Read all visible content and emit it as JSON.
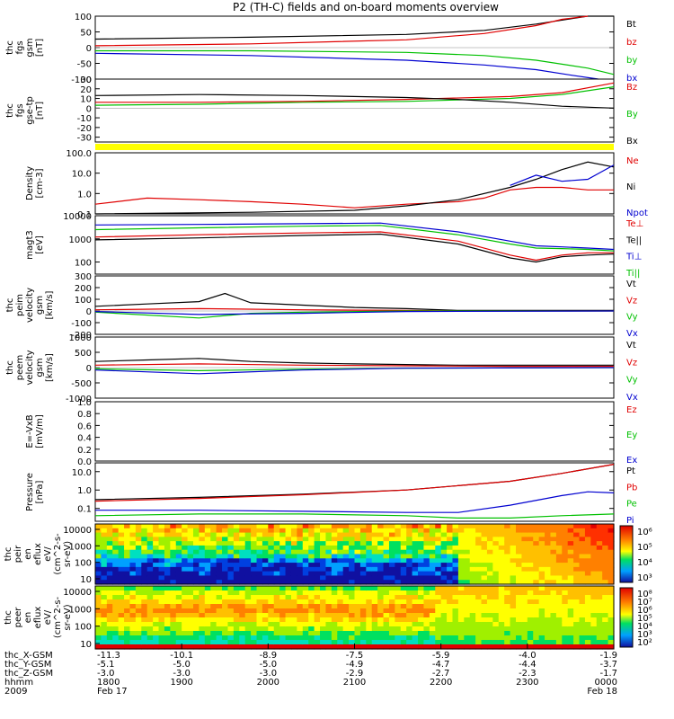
{
  "chart_data": {
    "type": "line",
    "title": "P2 (TH-C) fields and on-board moments overview",
    "panels": [
      {
        "id": "fgs_gsm",
        "ylabel": [
          "thc",
          "fgs",
          "gsm",
          "[nT]"
        ],
        "yticks": [
          "100",
          "50",
          "0",
          "-50",
          "-100"
        ],
        "ylim": [
          -100,
          100
        ],
        "ylog": false,
        "legend": [
          {
            "label": "Bt",
            "color": "#000000"
          },
          {
            "label": "bz",
            "color": "#e00000"
          },
          {
            "label": "by",
            "color": "#00c000"
          },
          {
            "label": "bx",
            "color": "#0000d0"
          }
        ],
        "series": [
          {
            "color": "#000000",
            "x": [
              0,
              0.3,
              0.6,
              0.75,
              0.85,
              0.95,
              1.0
            ],
            "y": [
              27,
              33,
              42,
              55,
              75,
              102,
              102
            ]
          },
          {
            "color": "#e00000",
            "x": [
              0,
              0.3,
              0.6,
              0.75,
              0.85,
              0.9,
              0.95
            ],
            "y": [
              6,
              12,
              25,
              45,
              70,
              90,
              100
            ]
          },
          {
            "color": "#00c000",
            "x": [
              0,
              0.3,
              0.6,
              0.75,
              0.85,
              0.95,
              1.0
            ],
            "y": [
              -10,
              -10,
              -15,
              -25,
              -40,
              -65,
              -85
            ]
          },
          {
            "color": "#0000d0",
            "x": [
              0,
              0.3,
              0.6,
              0.75,
              0.85,
              0.92,
              0.97
            ],
            "y": [
              -18,
              -25,
              -40,
              -55,
              -70,
              -88,
              -100
            ]
          }
        ]
      },
      {
        "id": "fgs_gse",
        "ylabel": [
          "thc",
          "fgs",
          "gse-tp",
          "[nT]"
        ],
        "yticks": [
          "30",
          "20",
          "10",
          "0",
          "-10",
          "-20",
          "-30"
        ],
        "ylim": [
          -35,
          30
        ],
        "ylog": false,
        "legend": [
          {
            "label": "Bz",
            "color": "#e00000"
          },
          {
            "label": "By",
            "color": "#00c000"
          },
          {
            "label": "Bx",
            "color": "#000000"
          }
        ],
        "series": [
          {
            "color": "#00c000",
            "x": [
              0,
              0.2,
              0.4,
              0.6,
              0.8,
              0.9,
              1.0
            ],
            "y": [
              3,
              4,
              6,
              7,
              10,
              14,
              22
            ]
          },
          {
            "color": "#e00000",
            "x": [
              0,
              0.2,
              0.4,
              0.6,
              0.8,
              0.9,
              1.0
            ],
            "y": [
              6,
              6,
              7,
              9,
              12,
              16,
              26
            ]
          },
          {
            "color": "#000000",
            "x": [
              0,
              0.2,
              0.4,
              0.6,
              0.7,
              0.8,
              0.9,
              1.0
            ],
            "y": [
              13,
              14,
              13,
              11,
              9,
              6,
              2,
              0
            ]
          }
        ]
      },
      {
        "id": "quality_bar",
        "bar_color": "#ffff00"
      },
      {
        "id": "density",
        "ylabel": [
          "Density",
          "[cm-3]"
        ],
        "yticks": [
          "100.0",
          "10.0",
          "1.0",
          "0.1"
        ],
        "ylim": [
          0.1,
          100
        ],
        "ylog": true,
        "legend": [
          {
            "label": "Ne",
            "color": "#e00000"
          },
          {
            "label": "Ni",
            "color": "#000000"
          },
          {
            "label": "Npot",
            "color": "#0000d0"
          }
        ],
        "series": [
          {
            "color": "#e00000",
            "x": [
              0,
              0.1,
              0.2,
              0.3,
              0.4,
              0.5,
              0.6,
              0.7,
              0.75,
              0.8,
              0.85,
              0.9,
              0.95,
              1.0
            ],
            "y": [
              0.3,
              0.6,
              0.5,
              0.4,
              0.3,
              0.2,
              0.3,
              0.4,
              0.6,
              1.5,
              2.0,
              2.0,
              1.5,
              1.5
            ]
          },
          {
            "color": "#000000",
            "x": [
              0,
              0.3,
              0.5,
              0.6,
              0.7,
              0.8,
              0.85,
              0.9,
              0.95,
              1.0
            ],
            "y": [
              0.1,
              0.12,
              0.15,
              0.25,
              0.5,
              2.0,
              5.0,
              15,
              35,
              20
            ]
          },
          {
            "color": "#0000d0",
            "x": [
              0.8,
              0.85,
              0.9,
              0.95,
              1.0
            ],
            "y": [
              2.5,
              8.0,
              4.0,
              5.0,
              25
            ]
          }
        ]
      },
      {
        "id": "temperature",
        "ylabel": [
          "magt3",
          "[eV]"
        ],
        "yticks": [
          "10000",
          "1000",
          "100"
        ],
        "ylim": [
          30,
          10000
        ],
        "ylog": true,
        "legend": [
          {
            "label": "Te⊥",
            "color": "#e00000"
          },
          {
            "label": "Te||",
            "color": "#000000"
          },
          {
            "label": "Ti⊥",
            "color": "#0000d0"
          },
          {
            "label": "Ti||",
            "color": "#00c000"
          }
        ],
        "series": [
          {
            "color": "#0000d0",
            "x": [
              0,
              0.2,
              0.4,
              0.55,
              0.7,
              0.8,
              0.85,
              0.9,
              0.95,
              1.0
            ],
            "y": [
              4000,
              4200,
              4500,
              4800,
              2000,
              800,
              500,
              450,
              400,
              350
            ]
          },
          {
            "color": "#00c000",
            "x": [
              0,
              0.2,
              0.4,
              0.55,
              0.7,
              0.8,
              0.85,
              0.9,
              0.95,
              1.0
            ],
            "y": [
              2500,
              3000,
              3500,
              3800,
              1500,
              600,
              400,
              380,
              350,
              300
            ]
          },
          {
            "color": "#e00000",
            "x": [
              0,
              0.2,
              0.4,
              0.55,
              0.7,
              0.8,
              0.85,
              0.9,
              0.95,
              1.0
            ],
            "y": [
              1200,
              1500,
              1800,
              2000,
              800,
              200,
              120,
              200,
              250,
              250
            ]
          },
          {
            "color": "#000000",
            "x": [
              0,
              0.2,
              0.4,
              0.55,
              0.7,
              0.8,
              0.85,
              0.9,
              0.95,
              1.0
            ],
            "y": [
              900,
              1100,
              1400,
              1600,
              600,
              150,
              100,
              170,
              200,
              220
            ]
          }
        ]
      },
      {
        "id": "peim_velocity",
        "ylabel": [
          "thc",
          "peim",
          "velocity",
          "gsm",
          "[km/s]"
        ],
        "yticks": [
          "300",
          "200",
          "100",
          "0",
          "-100",
          "-200"
        ],
        "ylim": [
          -200,
          300
        ],
        "ylog": false,
        "legend": [
          {
            "label": "Vt",
            "color": "#000000"
          },
          {
            "label": "Vz",
            "color": "#e00000"
          },
          {
            "label": "Vy",
            "color": "#00c000"
          },
          {
            "label": "Vx",
            "color": "#0000d0"
          }
        ],
        "series": [
          {
            "color": "#000000",
            "x": [
              0,
              0.1,
              0.2,
              0.25,
              0.3,
              0.4,
              0.5,
              0.6,
              0.7,
              1.0
            ],
            "y": [
              40,
              60,
              80,
              150,
              70,
              50,
              30,
              20,
              5,
              5
            ]
          },
          {
            "color": "#e00000",
            "x": [
              0,
              0.2,
              0.4,
              0.6,
              0.7,
              1.0
            ],
            "y": [
              10,
              20,
              10,
              5,
              0,
              0
            ]
          },
          {
            "color": "#00c000",
            "x": [
              0,
              0.2,
              0.3,
              0.4,
              0.6,
              1.0
            ],
            "y": [
              -10,
              -60,
              -20,
              -10,
              0,
              0
            ]
          },
          {
            "color": "#0000d0",
            "x": [
              0,
              0.2,
              0.4,
              0.6,
              1.0
            ],
            "y": [
              -5,
              -30,
              -20,
              -5,
              0
            ]
          }
        ]
      },
      {
        "id": "peem_velocity",
        "ylabel": [
          "thc",
          "peem",
          "velocity",
          "gsm",
          "[km/s]"
        ],
        "yticks": [
          "1000",
          "500",
          "0",
          "-500",
          "-1000"
        ],
        "ylim": [
          -1000,
          1000
        ],
        "ylog": false,
        "legend": [
          {
            "label": "Vt",
            "color": "#000000"
          },
          {
            "label": "Vz",
            "color": "#e00000"
          },
          {
            "label": "Vy",
            "color": "#00c000"
          },
          {
            "label": "Vx",
            "color": "#0000d0"
          }
        ],
        "series": [
          {
            "color": "#000000",
            "x": [
              0,
              0.1,
              0.2,
              0.3,
              0.4,
              0.5,
              0.6,
              0.7,
              0.8,
              1.0
            ],
            "y": [
              200,
              250,
              300,
              200,
              150,
              120,
              100,
              80,
              80,
              80
            ]
          },
          {
            "color": "#e00000",
            "x": [
              0,
              0.2,
              0.4,
              0.6,
              0.8,
              1.0
            ],
            "y": [
              80,
              120,
              80,
              60,
              40,
              40
            ]
          },
          {
            "color": "#00c000",
            "x": [
              0,
              0.2,
              0.4,
              0.6,
              1.0
            ],
            "y": [
              -40,
              -100,
              -50,
              -20,
              0
            ]
          },
          {
            "color": "#0000d0",
            "x": [
              0,
              0.2,
              0.4,
              0.6,
              1.0
            ],
            "y": [
              -80,
              -200,
              -80,
              -20,
              0
            ]
          }
        ]
      },
      {
        "id": "e_field",
        "ylabel": [
          "E=-VxB",
          "[mV/m]"
        ],
        "yticks": [
          "1.0",
          "0.8",
          "0.6",
          "0.4",
          "0.2",
          "0.0"
        ],
        "ylim": [
          0,
          1
        ],
        "ylog": false,
        "legend": [
          {
            "label": "Ez",
            "color": "#e00000"
          },
          {
            "label": "Ey",
            "color": "#00c000"
          },
          {
            "label": "Ex",
            "color": "#0000d0"
          }
        ],
        "series": []
      },
      {
        "id": "pressure",
        "ylabel": [
          "Pressure",
          "[nPa]"
        ],
        "yticks": [
          "10.0",
          "1.0",
          "0.1"
        ],
        "ylim": [
          0.02,
          30
        ],
        "ylog": true,
        "legend": [
          {
            "label": "Pt",
            "color": "#000000"
          },
          {
            "label": "Pb",
            "color": "#e00000"
          },
          {
            "label": "Pe",
            "color": "#00c000"
          },
          {
            "label": "Pi",
            "color": "#0000d0"
          }
        ],
        "series": [
          {
            "color": "#000000",
            "x": [
              0,
              0.2,
              0.4,
              0.6,
              0.8,
              0.9,
              1.0
            ],
            "y": [
              0.3,
              0.4,
              0.6,
              1.0,
              3.0,
              8.0,
              25
            ]
          },
          {
            "color": "#e00000",
            "x": [
              0,
              0.2,
              0.4,
              0.6,
              0.8,
              0.9,
              1.0
            ],
            "y": [
              0.25,
              0.35,
              0.55,
              1.0,
              3.0,
              8.0,
              25
            ]
          },
          {
            "color": "#0000d0",
            "x": [
              0,
              0.2,
              0.4,
              0.6,
              0.7,
              0.8,
              0.9,
              0.95,
              1.0
            ],
            "y": [
              0.08,
              0.08,
              0.07,
              0.06,
              0.06,
              0.15,
              0.5,
              0.8,
              0.7
            ]
          },
          {
            "color": "#00c000",
            "x": [
              0,
              0.2,
              0.4,
              0.6,
              0.7,
              0.8,
              0.9,
              1.0
            ],
            "y": [
              0.04,
              0.05,
              0.05,
              0.04,
              0.03,
              0.03,
              0.04,
              0.05
            ]
          }
        ]
      },
      {
        "id": "peir_spectrogram",
        "type": "heatmap",
        "ylabel": [
          "thc",
          "peir",
          "en",
          "eflux",
          "eV/",
          "(cm^2-s-",
          "sr-eV)"
        ],
        "yticks": [
          "10000",
          "1000",
          "100",
          "10"
        ],
        "colorbar_ticks": [
          "10⁶",
          "10⁵",
          "10⁴",
          "10³"
        ]
      },
      {
        "id": "peer_spectrogram",
        "type": "heatmap",
        "ylabel": [
          "thc",
          "peer",
          "en",
          "eflux",
          "eV/",
          "(cm^2-s-",
          "sr-eV)"
        ],
        "yticks": [
          "10000",
          "1000",
          "100",
          "10"
        ],
        "colorbar_ticks": [
          "10⁸",
          "10⁷",
          "10⁶",
          "10⁵",
          "10⁴",
          "10³",
          "10²"
        ]
      }
    ],
    "xaxis": {
      "row_labels": [
        "thc_X-GSM",
        "thc_Y-GSM",
        "thc_Z-GSM",
        "hhmm",
        "2009"
      ],
      "columns": [
        [
          "-11.3",
          "-5.1",
          "-3.0",
          "1800",
          "Feb 17"
        ],
        [
          "-10.1",
          "-5.0",
          "-3.0",
          "1900",
          ""
        ],
        [
          "-8.9",
          "-5.0",
          "-3.0",
          "2000",
          ""
        ],
        [
          "-7.5",
          "-4.9",
          "-2.9",
          "2100",
          ""
        ],
        [
          "-5.9",
          "-4.7",
          "-2.7",
          "2200",
          ""
        ],
        [
          "-4.0",
          "-4.4",
          "-2.3",
          "2300",
          ""
        ],
        [
          "-1.9",
          "-3.7",
          "-1.7",
          "0000",
          "Feb 18"
        ]
      ]
    }
  }
}
